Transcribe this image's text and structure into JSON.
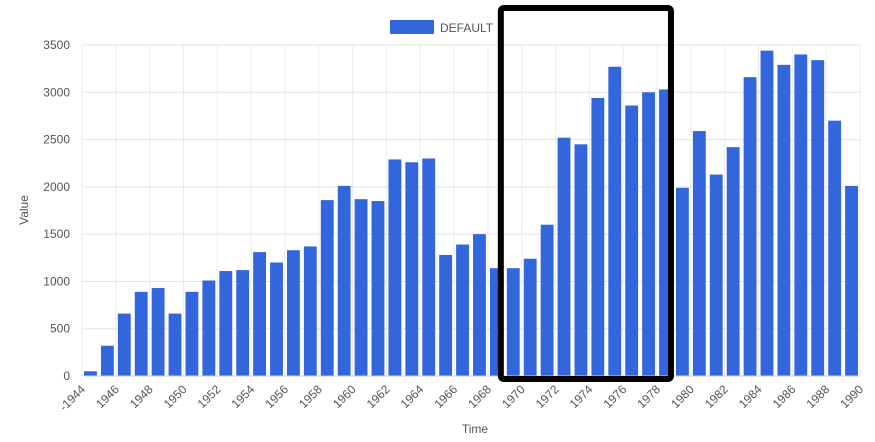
{
  "chart_data": {
    "type": "bar",
    "xlabel": "Time",
    "ylabel": "Value",
    "ylim": [
      0,
      3500
    ],
    "yticks": [
      0,
      500,
      1000,
      1500,
      2000,
      2500,
      3000,
      3500
    ],
    "grid": true,
    "legend_position": "top-center",
    "categories": [
      "1945",
      "1946",
      "1947",
      "1948",
      "1949",
      "1950",
      "1951",
      "1952",
      "1953",
      "1954",
      "1955",
      "1956",
      "1957",
      "1958",
      "1959",
      "1960",
      "1961",
      "1962",
      "1963",
      "1964",
      "1965",
      "1966",
      "1967",
      "1968",
      "1969",
      "1970",
      "1971",
      "1972",
      "1973",
      "1974",
      "1975",
      "1976",
      "1977",
      "1978",
      "1979",
      "1980",
      "1981",
      "1982",
      "1983",
      "1984",
      "1985",
      "1986",
      "1987",
      "1988",
      "1989",
      "1990"
    ],
    "xtick_labels": [
      "-1944",
      "1946",
      "1948",
      "1950",
      "1952",
      "1954",
      "1956",
      "1958",
      "1960",
      "1962",
      "1964",
      "1966",
      "1968",
      "1970",
      "1972",
      "1974",
      "1976",
      "1978",
      "1980",
      "1982",
      "1984",
      "1986",
      "1988",
      "1990"
    ],
    "series": [
      {
        "name": "DEFAULT",
        "color": "#3366dd",
        "values": [
          50,
          320,
          660,
          890,
          930,
          660,
          890,
          1010,
          1110,
          1120,
          1310,
          1200,
          1330,
          1370,
          1860,
          2010,
          1870,
          1850,
          2290,
          2260,
          2300,
          1280,
          1390,
          1500,
          1140,
          1140,
          1240,
          1600,
          2520,
          2450,
          2940,
          3270,
          2860,
          3000,
          3030,
          1990,
          2590,
          2130,
          2420,
          3160,
          3440,
          3290,
          3400,
          3340,
          2700,
          2010
        ]
      }
    ],
    "annotations": [
      {
        "type": "highlight-box",
        "start": "1970",
        "end": "1979",
        "color": "#000000"
      }
    ]
  }
}
